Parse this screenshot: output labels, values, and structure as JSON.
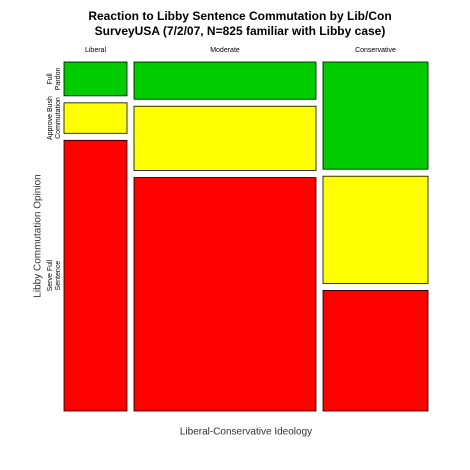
{
  "chart_data": {
    "type": "mosaic",
    "title": "Reaction to Libby Sentence Commutation by Lib/Con",
    "subtitle": "SurveyUSA (7/2/07, N=825 familiar with Libby case)",
    "x_label": "Liberal-Conservative Ideology",
    "y_label": "Libby Commutation Opinion",
    "categories": [
      "Liberal",
      "Moderate",
      "Conservative"
    ],
    "widths": [
      18,
      52,
      30
    ],
    "series": [
      {
        "name": "Full Pardon",
        "color": "#00cc00",
        "values": [
          10,
          11,
          32
        ]
      },
      {
        "name": "Approve Bush Commutation",
        "color": "#ffff00",
        "values": [
          9,
          19,
          32
        ]
      },
      {
        "name": "Serve Full Sentence",
        "color": "#ff0000",
        "values": [
          80,
          69,
          36
        ]
      }
    ]
  }
}
